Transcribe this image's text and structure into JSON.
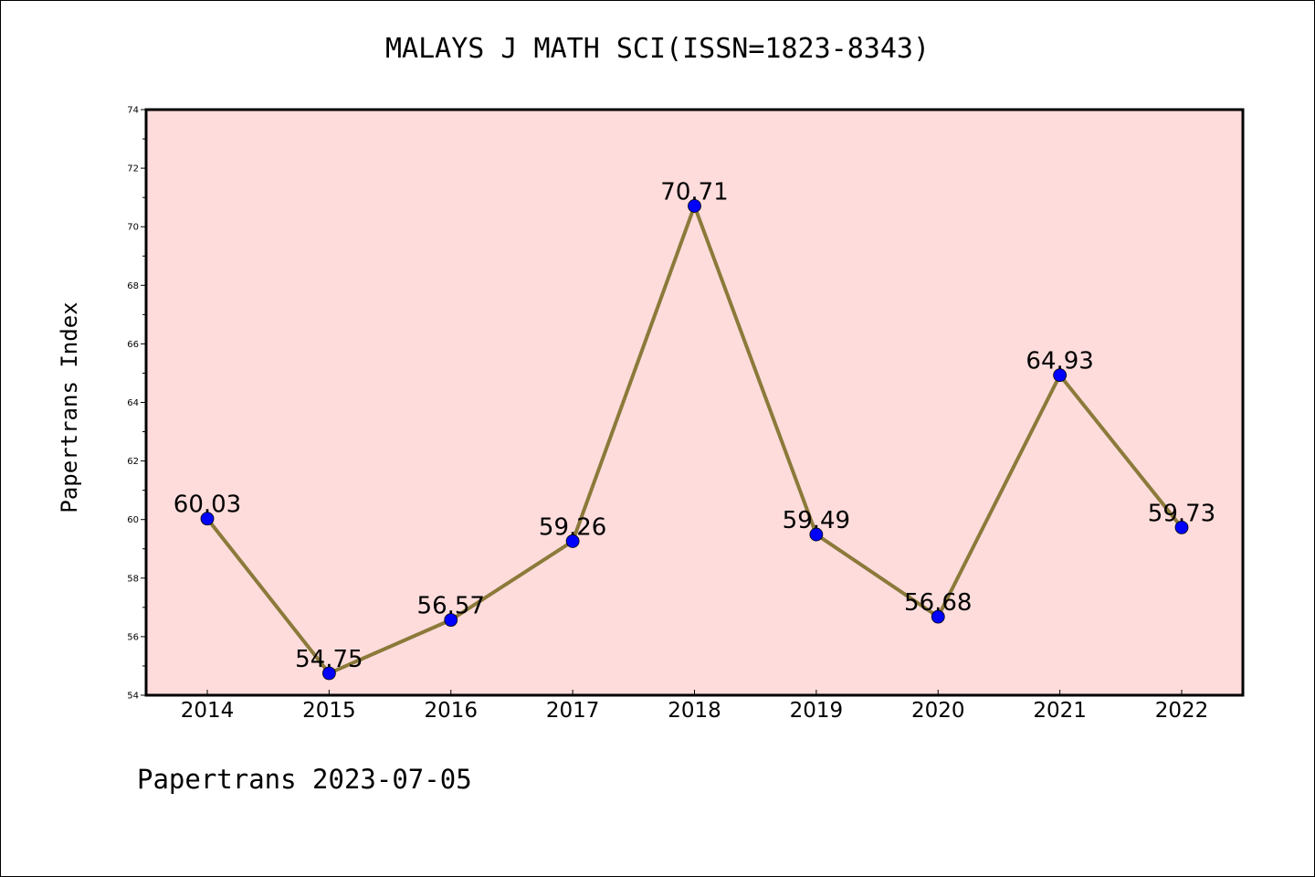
{
  "chart_data": {
    "type": "line",
    "title": "MALAYS J MATH SCI(ISSN=1823-8343)",
    "ylabel": "Papertrans Index",
    "xlabel": "",
    "categories": [
      "2014",
      "2015",
      "2016",
      "2017",
      "2018",
      "2019",
      "2020",
      "2021",
      "2022"
    ],
    "series": [
      {
        "values": [
          60.03,
          54.75,
          56.57,
          59.26,
          70.71,
          59.49,
          56.68,
          64.93,
          59.73
        ],
        "labels": [
          "60.03",
          "54.75",
          "56.57",
          "59.26",
          "70.71",
          "59.49",
          "56.68",
          "64.93",
          "59.73"
        ]
      }
    ],
    "ylim": [
      54,
      74
    ],
    "yticks": [
      "54",
      "56",
      "58",
      "60",
      "62",
      "64",
      "66",
      "68",
      "70",
      "72",
      "74"
    ],
    "grid": false,
    "colors": {
      "plot_background": "#ffdcdc",
      "line": "#8b7a3a",
      "marker": "#0000ff"
    }
  },
  "footer": "Papertrans 2023-07-05"
}
